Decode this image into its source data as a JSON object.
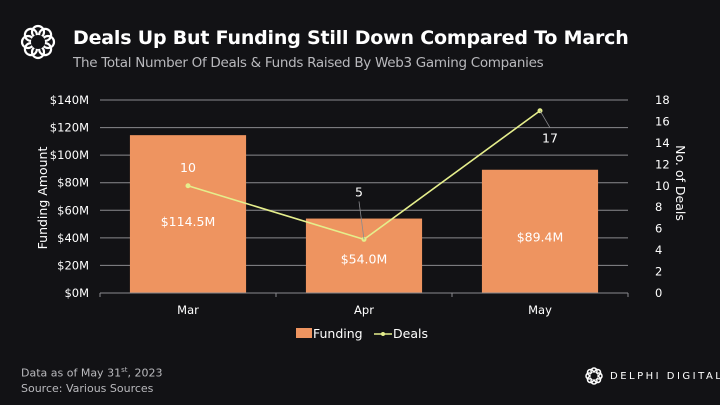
{
  "header": {
    "title": "Deals Up But Funding Still Down Compared To March",
    "subtitle": "The Total Number Of Deals & Funds Raised By Web3 Gaming Companies"
  },
  "footer": {
    "data_as_of_prefix": "Data as of May 31",
    "data_as_of_sup": "st",
    "data_as_of_suffix": ", 2023",
    "source": "Source: Various Sources",
    "brand": "DELPHI DIGITAL"
  },
  "colors": {
    "background": "#121215",
    "bar": "#EE9460",
    "line": "#E5EE8C",
    "grid": "#8A8A8E",
    "text": "#FFFFFF",
    "muted_text": "#B9B9BD"
  },
  "chart_data": {
    "type": "bar",
    "title": "Deals Up But Funding Still Down Compared To March",
    "categories": [
      "Mar",
      "Apr",
      "May"
    ],
    "series": [
      {
        "name": "Funding",
        "type": "bar",
        "axis": "left",
        "values": [
          114.5,
          54.0,
          89.4
        ],
        "labels": [
          "$114.5M",
          "$54.0M",
          "$89.4M"
        ]
      },
      {
        "name": "Deals",
        "type": "line",
        "axis": "right",
        "values": [
          10,
          5,
          17
        ],
        "labels": [
          "10",
          "5",
          "17"
        ]
      }
    ],
    "ylabel": "Funding Amount",
    "y2label": "No. of Deals",
    "ylim": [
      0,
      140
    ],
    "y2lim": [
      0,
      18
    ],
    "yticks": [
      "$0M",
      "$20M",
      "$40M",
      "$60M",
      "$80M",
      "$100M",
      "$120M",
      "$140M"
    ],
    "ytick_values": [
      0,
      20,
      40,
      60,
      80,
      100,
      120,
      140
    ],
    "y2ticks": [
      "0",
      "2",
      "4",
      "6",
      "8",
      "10",
      "12",
      "14",
      "16",
      "18"
    ],
    "y2tick_values": [
      0,
      2,
      4,
      6,
      8,
      10,
      12,
      14,
      16,
      18
    ],
    "grid": true,
    "legend": {
      "position": "bottom-center",
      "entries": [
        "Funding",
        "Deals"
      ]
    }
  }
}
